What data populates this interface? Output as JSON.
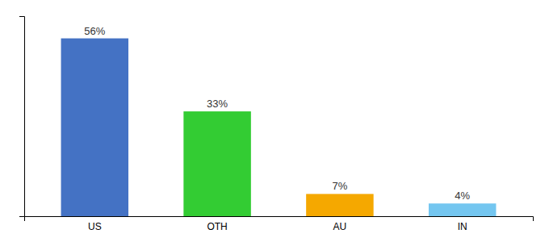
{
  "chart_data": {
    "type": "bar",
    "categories": [
      "US",
      "OTH",
      "AU",
      "IN"
    ],
    "values": [
      56,
      33,
      7,
      4
    ],
    "value_labels": [
      "56%",
      "33%",
      "7%",
      "4%"
    ],
    "data_labels": true,
    "colors": [
      "#4472c4",
      "#33cc33",
      "#f5a800",
      "#74c6f0"
    ],
    "ylim": [
      0,
      63
    ],
    "grid": false,
    "tick_labels": "x"
  }
}
